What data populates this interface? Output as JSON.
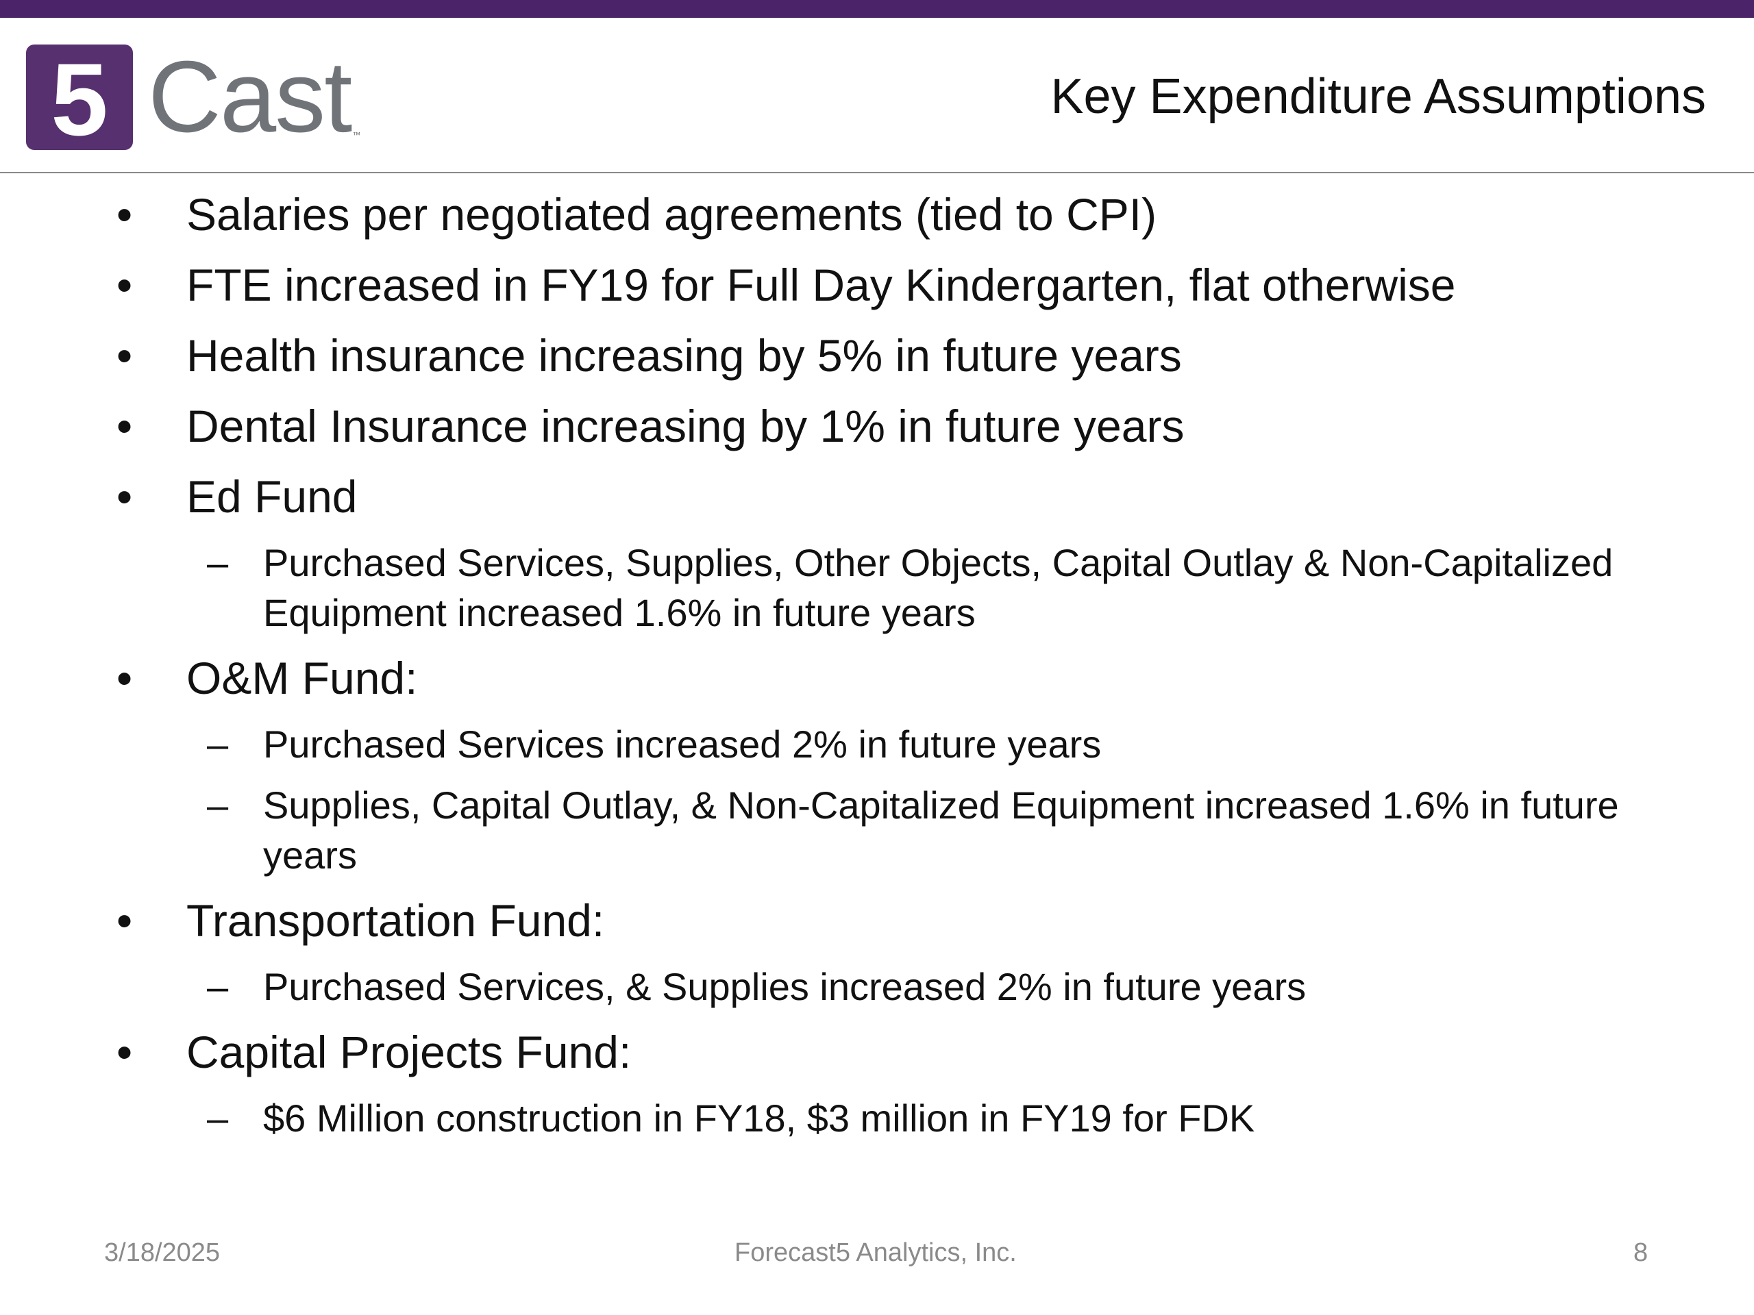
{
  "brand": {
    "logo_mark_text": "5",
    "logo_word": "Cast",
    "logo_tm": "™",
    "accent_color": "#4b2368"
  },
  "slide": {
    "title": "Key Expenditure Assumptions"
  },
  "content": {
    "bullet_marker": "•",
    "sub_marker": "–",
    "items": [
      {
        "type": "bullet",
        "text": "Salaries per negotiated agreements (tied to CPI)"
      },
      {
        "type": "bullet",
        "text": "FTE increased in FY19 for Full Day Kindergarten, flat otherwise"
      },
      {
        "type": "bullet",
        "text": "Health insurance increasing by 5% in future years"
      },
      {
        "type": "bullet",
        "text": "Dental Insurance increasing by 1% in future years"
      },
      {
        "type": "bullet",
        "text": "Ed Fund"
      },
      {
        "type": "sub",
        "text": "Purchased Services, Supplies, Other Objects, Capital Outlay & Non-Capitalized Equipment increased 1.6% in future years"
      },
      {
        "type": "bullet",
        "text": "O&M Fund:"
      },
      {
        "type": "sub",
        "text": "Purchased Services increased 2% in future years"
      },
      {
        "type": "sub",
        "text": "Supplies, Capital Outlay, & Non-Capitalized Equipment  increased 1.6% in future years"
      },
      {
        "type": "bullet",
        "text": "Transportation Fund:"
      },
      {
        "type": "sub",
        "text": "Purchased Services, & Supplies increased 2% in future years"
      },
      {
        "type": "bullet",
        "text": "Capital Projects Fund:"
      },
      {
        "type": "sub",
        "text": "$6 Million construction in FY18, $3 million in FY19 for FDK"
      }
    ]
  },
  "footer": {
    "date": "3/18/2025",
    "company": "Forecast5 Analytics, Inc.",
    "page_number": "8"
  }
}
